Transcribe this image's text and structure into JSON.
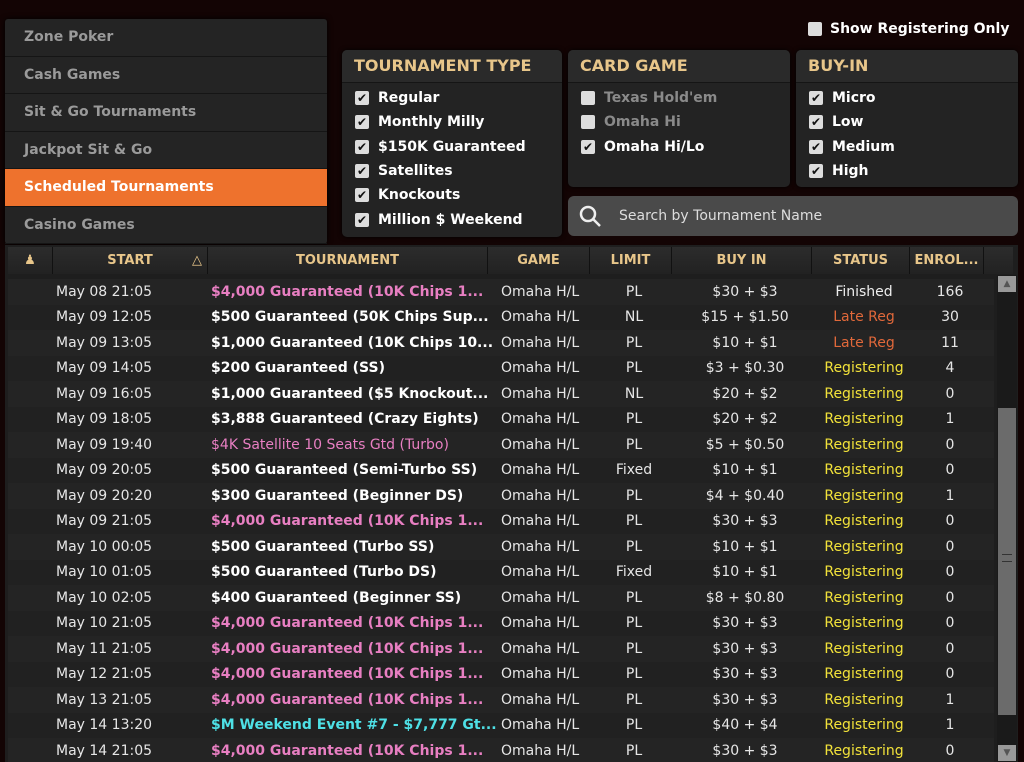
{
  "nav": [
    "Zone Poker",
    "Cash Games",
    "Sit & Go Tournaments",
    "Jackpot Sit & Go",
    "Scheduled Tournaments",
    "Casino Games"
  ],
  "nav_active": 4,
  "show_registering_only": {
    "label": "Show Registering Only",
    "checked": false
  },
  "tournament_type": {
    "title": "TOURNAMENT TYPE",
    "items": [
      {
        "label": "Regular",
        "checked": true
      },
      {
        "label": "Monthly Milly",
        "checked": true
      },
      {
        "label": "$150K Guaranteed",
        "checked": true
      },
      {
        "label": "Satellites",
        "checked": true
      },
      {
        "label": "Knockouts",
        "checked": true
      },
      {
        "label": "Million $ Weekend",
        "checked": true
      }
    ]
  },
  "card_game": {
    "title": "CARD GAME",
    "items": [
      {
        "label": "Texas Hold'em",
        "checked": false
      },
      {
        "label": "Omaha Hi",
        "checked": false
      },
      {
        "label": "Omaha Hi/Lo",
        "checked": true
      }
    ]
  },
  "buy_in": {
    "title": "BUY-IN",
    "items": [
      {
        "label": "Micro",
        "checked": true
      },
      {
        "label": "Low",
        "checked": true
      },
      {
        "label": "Medium",
        "checked": true
      },
      {
        "label": "High",
        "checked": true
      }
    ]
  },
  "search": {
    "placeholder": "Search by Tournament Name"
  },
  "columns": [
    "START",
    "TOURNAMENT",
    "GAME",
    "LIMIT",
    "BUY IN",
    "STATUS",
    "ENROL..."
  ],
  "sort_indicator": "△",
  "colors": {
    "accent": "#ee722d",
    "header": "#e8c68a",
    "pink": "#e87fc2",
    "cyan": "#4ee0e6",
    "late_reg": "#e0683a",
    "registering": "#f2e23a"
  },
  "rows": [
    {
      "start": "May 08 21:05",
      "name": "$4,000 Guaranteed (10K Chips 1...",
      "style": "pink",
      "game": "Omaha H/L",
      "limit": "PL",
      "buyin": "$30 + $3",
      "status": "Finished",
      "enrolled": "166"
    },
    {
      "start": "May 09 12:05",
      "name": "$500 Guaranteed (50K Chips Sup...",
      "style": "white",
      "game": "Omaha H/L",
      "limit": "NL",
      "buyin": "$15 + $1.50",
      "status": "Late Reg",
      "enrolled": "30"
    },
    {
      "start": "May 09 13:05",
      "name": "$1,000 Guaranteed (10K Chips 10...",
      "style": "white",
      "game": "Omaha H/L",
      "limit": "PL",
      "buyin": "$10 + $1",
      "status": "Late Reg",
      "enrolled": "11"
    },
    {
      "start": "May 09 14:05",
      "name": "$200 Guaranteed (SS)",
      "style": "white",
      "game": "Omaha H/L",
      "limit": "PL",
      "buyin": "$3 + $0.30",
      "status": "Registering",
      "enrolled": "4"
    },
    {
      "start": "May 09 16:05",
      "name": "$1,000 Guaranteed ($5 Knockout...",
      "style": "white",
      "game": "Omaha H/L",
      "limit": "NL",
      "buyin": "$20 + $2",
      "status": "Registering",
      "enrolled": "0"
    },
    {
      "start": "May 09 18:05",
      "name": "$3,888 Guaranteed (Crazy Eights)",
      "style": "white",
      "game": "Omaha H/L",
      "limit": "PL",
      "buyin": "$20 + $2",
      "status": "Registering",
      "enrolled": "1"
    },
    {
      "start": "May 09 19:40",
      "name": "$4K Satellite 10 Seats Gtd (Turbo)",
      "style": "pink-light",
      "game": "Omaha H/L",
      "limit": "PL",
      "buyin": "$5 + $0.50",
      "status": "Registering",
      "enrolled": "0"
    },
    {
      "start": "May 09 20:05",
      "name": "$500 Guaranteed (Semi-Turbo SS)",
      "style": "white",
      "game": "Omaha H/L",
      "limit": "Fixed",
      "buyin": "$10 + $1",
      "status": "Registering",
      "enrolled": "0"
    },
    {
      "start": "May 09 20:20",
      "name": "$300 Guaranteed (Beginner DS)",
      "style": "white",
      "game": "Omaha H/L",
      "limit": "PL",
      "buyin": "$4 + $0.40",
      "status": "Registering",
      "enrolled": "1"
    },
    {
      "start": "May 09 21:05",
      "name": "$4,000 Guaranteed (10K Chips 1...",
      "style": "pink",
      "game": "Omaha H/L",
      "limit": "PL",
      "buyin": "$30 + $3",
      "status": "Registering",
      "enrolled": "0"
    },
    {
      "start": "May 10 00:05",
      "name": "$500 Guaranteed (Turbo SS)",
      "style": "white",
      "game": "Omaha H/L",
      "limit": "PL",
      "buyin": "$10 + $1",
      "status": "Registering",
      "enrolled": "0"
    },
    {
      "start": "May 10 01:05",
      "name": "$500 Guaranteed (Turbo DS)",
      "style": "white",
      "game": "Omaha H/L",
      "limit": "Fixed",
      "buyin": "$10 + $1",
      "status": "Registering",
      "enrolled": "0"
    },
    {
      "start": "May 10 02:05",
      "name": "$400 Guaranteed (Beginner SS)",
      "style": "white",
      "game": "Omaha H/L",
      "limit": "PL",
      "buyin": "$8 + $0.80",
      "status": "Registering",
      "enrolled": "0"
    },
    {
      "start": "May 10 21:05",
      "name": "$4,000 Guaranteed (10K Chips 1...",
      "style": "pink",
      "game": "Omaha H/L",
      "limit": "PL",
      "buyin": "$30 + $3",
      "status": "Registering",
      "enrolled": "0"
    },
    {
      "start": "May 11 21:05",
      "name": "$4,000 Guaranteed (10K Chips 1...",
      "style": "pink",
      "game": "Omaha H/L",
      "limit": "PL",
      "buyin": "$30 + $3",
      "status": "Registering",
      "enrolled": "0"
    },
    {
      "start": "May 12 21:05",
      "name": "$4,000 Guaranteed (10K Chips 1...",
      "style": "pink",
      "game": "Omaha H/L",
      "limit": "PL",
      "buyin": "$30 + $3",
      "status": "Registering",
      "enrolled": "0"
    },
    {
      "start": "May 13 21:05",
      "name": "$4,000 Guaranteed (10K Chips 1...",
      "style": "pink",
      "game": "Omaha H/L",
      "limit": "PL",
      "buyin": "$30 + $3",
      "status": "Registering",
      "enrolled": "1"
    },
    {
      "start": "May 14 13:20",
      "name": "$M Weekend Event #7 - $7,777 Gt...",
      "style": "cyan",
      "game": "Omaha H/L",
      "limit": "PL",
      "buyin": "$40 + $4",
      "status": "Registering",
      "enrolled": "1"
    },
    {
      "start": "May 14 21:05",
      "name": "$4,000 Guaranteed (10K Chips 1...",
      "style": "pink",
      "game": "Omaha H/L",
      "limit": "PL",
      "buyin": "$30 + $3",
      "status": "Registering",
      "enrolled": "0"
    }
  ]
}
